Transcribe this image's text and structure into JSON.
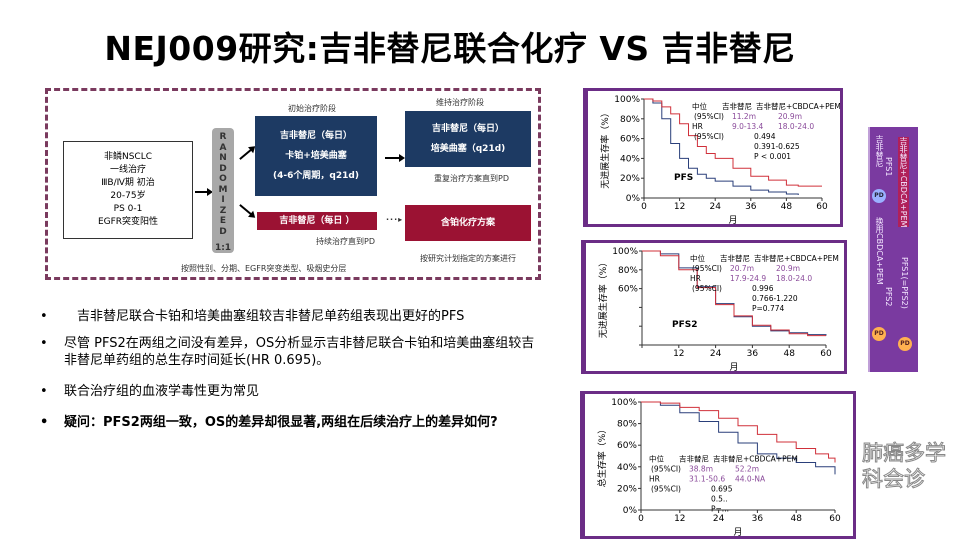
{
  "title": "NEJ009研究:吉非替尼联合化疗  VS  吉非替尼",
  "design": {
    "patient_lines": [
      "非鳞NSCLC",
      "一线治疗",
      "ⅢB/Ⅳ期 初治",
      "20-75岁",
      "PS 0-1",
      "EGFR突变阳性"
    ],
    "randomized": [
      "R",
      "A",
      "N",
      "D",
      "O",
      "M",
      "I",
      "Z",
      "E",
      "D"
    ],
    "ratio": "1:1",
    "initial_phase": "初始治疗阶段",
    "maintenance_phase": "维持治疗阶段",
    "combo_lines": [
      "吉非替尼（每日）",
      "卡铂+培美曲塞",
      "(4-6个周期，q21d)"
    ],
    "maint_lines": [
      "吉非替尼（每日）",
      "培美曲塞（q21d)"
    ],
    "repeat_note": "重复治疗方案直到PD",
    "mono": "吉非替尼（每日 ）",
    "continue_note": "持续治疗直到PD",
    "platinum": "含铂化疗方案",
    "protocol_note": "按研究计划指定的方案进行",
    "strata": "按照性别、分期、EGFR突变类型、吸烟史分层"
  },
  "bullets": [
    {
      "dot": "•",
      "text": "吉非替尼联合卡铂和培美曲塞组较吉非替尼单药组表现出更好的PFS"
    },
    {
      "dot": "•",
      "text": "尽管 PFS2在两组之间没有差异，OS分析显示吉非替尼联合卡铂和培美曲塞组较吉非替尼单药组的总生存时间延长(HR 0.695)。"
    },
    {
      "dot": "•",
      "text": "联合治疗组的血液学毒性更为常见"
    },
    {
      "dot": "•",
      "text": "疑问：PFS2两组一致，OS的差异却很显著,两组在后续治疗上的差异如何?"
    }
  ],
  "colors": {
    "gef": "#2a3f7a",
    "combo": "#d0303a",
    "frame": "#6b2d86",
    "stats": "#8a4a9a"
  },
  "chart_data": [
    {
      "type": "line",
      "label": "PFS",
      "ylabel": "无进展生存率（%）",
      "xlabel": "月",
      "xlim": [
        0,
        60
      ],
      "ylim": [
        0,
        100
      ],
      "xticks": [
        "0",
        "12",
        "24",
        "36",
        "48",
        "60"
      ],
      "yticks": [
        "0%",
        "20%",
        "40%",
        "60%",
        "80%",
        "100%"
      ],
      "stats": {
        "head": "中位",
        "ci1": "(95%CI)",
        "hr": "HR",
        "ci2": "(95%CI)",
        "arm1": "吉非替尼",
        "arm2": "吉非替尼+CBDCA+PEM",
        "m1": "11.2m",
        "c1": "9.0-13.4",
        "m2": "20.9m",
        "c2": "18.0-24.0",
        "hrv": "0.494",
        "hrci": "0.391-0.625",
        "p": "P < 0.001"
      },
      "series": [
        {
          "name": "吉非替尼",
          "x": [
            0,
            3,
            6,
            9,
            12,
            15,
            18,
            21,
            24,
            30,
            36,
            42,
            48,
            52
          ],
          "y": [
            100,
            96,
            80,
            55,
            40,
            30,
            24,
            20,
            17,
            12,
            8,
            6,
            4,
            3
          ]
        },
        {
          "name": "吉非替尼+CBDCA+PEM",
          "x": [
            0,
            3,
            6,
            9,
            12,
            15,
            18,
            21,
            24,
            30,
            36,
            42,
            48,
            52,
            60
          ],
          "y": [
            100,
            98,
            92,
            85,
            75,
            63,
            52,
            45,
            40,
            30,
            22,
            18,
            13,
            12,
            12
          ]
        }
      ]
    },
    {
      "type": "line",
      "label": "PFS2",
      "ylabel": "无进展生存率（%）",
      "xlabel": "月",
      "xlim": [
        0,
        60
      ],
      "ylim": [
        0,
        100
      ],
      "xticks": [
        "",
        "12",
        "24",
        "36",
        "48",
        "60"
      ],
      "yticks": [
        "",
        "",
        "",
        "60%",
        "80%",
        "100%"
      ],
      "stats": {
        "head": "中位",
        "ci1": "(95%CI)",
        "hr": "HR",
        "ci2": "(95%CI)",
        "arm1": "吉非替尼",
        "arm2": "吉非替尼+CBDCA+PEM",
        "m1": "20.7m",
        "c1": "17.9-24.9",
        "m2": "20.9m",
        "c2": "18.0-24.0",
        "hrv": "0.996",
        "hrci": "0.766-1.220",
        "p": "P=0.774"
      },
      "series": [
        {
          "name": "吉非替尼",
          "x": [
            0,
            6,
            12,
            18,
            24,
            30,
            36,
            42,
            48,
            54,
            60
          ],
          "y": [
            100,
            97,
            82,
            62,
            44,
            30,
            20,
            15,
            13,
            11,
            10
          ]
        },
        {
          "name": "吉非替尼+CBDCA+PEM",
          "x": [
            0,
            6,
            12,
            18,
            24,
            30,
            36,
            42,
            48,
            54,
            60
          ],
          "y": [
            100,
            95,
            80,
            61,
            43,
            31,
            21,
            16,
            12,
            10,
            10
          ]
        }
      ]
    },
    {
      "type": "line",
      "label": "",
      "ylabel": "总生存率（%）",
      "xlabel": "月",
      "xlim": [
        0,
        60
      ],
      "ylim": [
        0,
        100
      ],
      "xticks": [
        "0",
        "12",
        "24",
        "36",
        "48",
        "60"
      ],
      "yticks": [
        "0%",
        "20%",
        "40%",
        "60%",
        "80%",
        "100%"
      ],
      "stats": {
        "head": "中位",
        "ci1": "(95%CI)",
        "hr": "HR",
        "ci2": "(95%CI)",
        "arm1": "吉非替尼",
        "arm2": "吉非替尼+CBDCA+PEM",
        "m1": "38.8m",
        "c1": "31.1-50.6",
        "m2": "52.2m",
        "c2": "44.0-NA",
        "hrv": "0.695",
        "hrci": "0.5..",
        "p": "P=..."
      },
      "series": [
        {
          "name": "吉非替尼",
          "x": [
            0,
            6,
            12,
            18,
            24,
            30,
            36,
            42,
            48,
            54,
            60
          ],
          "y": [
            100,
            97,
            90,
            82,
            72,
            62,
            52,
            48,
            44,
            40,
            33
          ]
        },
        {
          "name": "吉非替尼+CBDCA+PEM",
          "x": [
            0,
            6,
            12,
            18,
            24,
            30,
            36,
            42,
            48,
            54,
            58,
            60
          ],
          "y": [
            100,
            99,
            95,
            92,
            85,
            78,
            70,
            63,
            57,
            52,
            48,
            44
          ]
        }
      ]
    }
  ],
  "strip": {
    "left_arm": "吉非替尼",
    "pfs1": "PFS1",
    "pd": "PD",
    "switch": "换用CBDCA+PEM",
    "pfs2": "PFS2",
    "right_arm": "吉非替尼+CBDCA+PEM",
    "pfs12": "PFS1(=PFS2)"
  },
  "watermark": "肺癌多学科会诊"
}
